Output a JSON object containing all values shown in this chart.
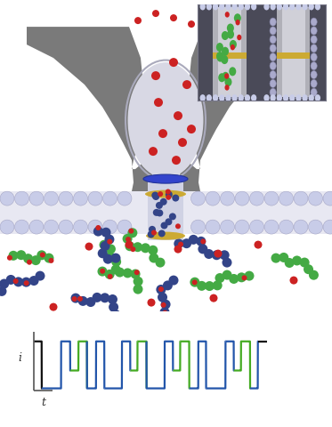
{
  "fig_width": 3.73,
  "fig_height": 4.8,
  "dpi": 100,
  "bg_color": "#ffffff",
  "signal_blue": "#2255aa",
  "signal_green": "#44aa22",
  "signal_black": "#111111",
  "gray_dark": "#7a7a7a",
  "gray_mid": "#909090",
  "gray_light": "#b8b8c0",
  "pore_body_color": "#d8d8e4",
  "pore_inner": "#e8e8f0",
  "membrane_bead_color": "#c8cce8",
  "membrane_bead_edge": "#9999bb",
  "blue_ring_color": "#3344cc",
  "gold_color": "#ccaa33",
  "red_dot_color": "#cc2222",
  "green_mol_color": "#44aa44",
  "blue_mol_color": "#334488",
  "inset_bg": "#4a4a58",
  "label_i": "i",
  "label_t": "t"
}
